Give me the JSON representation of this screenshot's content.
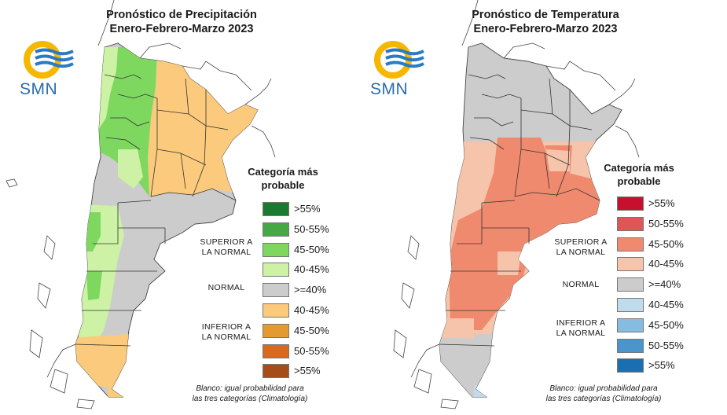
{
  "logo_text": "SMN",
  "precipitation": {
    "title_line1": "Pronóstico de Precipitación",
    "title_line2": "Enero-Febrero-Marzo 2023",
    "legend_title_line1": "Categoría más",
    "legend_title_line2": "probable",
    "legend_items": [
      {
        "label": ">55%",
        "color": "#1a7a30"
      },
      {
        "label": "50-55%",
        "color": "#45a845"
      },
      {
        "label": "45-50%",
        "color": "#7ed860"
      },
      {
        "label": "40-45%",
        "color": "#cdf2a5"
      },
      {
        "label": ">=40%",
        "color": "#cccccc"
      },
      {
        "label": "40-45%",
        "color": "#fbca7c"
      },
      {
        "label": "45-50%",
        "color": "#e39a30"
      },
      {
        "label": "50-55%",
        "color": "#d8691e"
      },
      {
        "label": ">55%",
        "color": "#a54e1a"
      }
    ],
    "category_superior_line1": "SUPERIOR A",
    "category_superior_line2": "LA NORMAL",
    "category_normal": "NORMAL",
    "category_inferior_line1": "INFERIOR A",
    "category_inferior_line2": "LA NORMAL",
    "note_line1": "Blanco: igual probabilidad para",
    "note_line2": "las tres categorías (Climatología)"
  },
  "temperature": {
    "title_line1": "Pronóstico de Temperatura",
    "title_line2": "Enero-Febrero-Marzo 2023",
    "legend_title_line1": "Categoría más",
    "legend_title_line2": "probable",
    "legend_items": [
      {
        "label": ">55%",
        "color": "#c8102e"
      },
      {
        "label": "50-55%",
        "color": "#e05555"
      },
      {
        "label": "45-50%",
        "color": "#f08a6e"
      },
      {
        "label": "40-45%",
        "color": "#f6c4aa"
      },
      {
        "label": ">=40%",
        "color": "#cccccc"
      },
      {
        "label": "40-45%",
        "color": "#c0dcec"
      },
      {
        "label": "45-50%",
        "color": "#86bcdf"
      },
      {
        "label": "50-55%",
        "color": "#4a96cc"
      },
      {
        "label": ">55%",
        "color": "#1a6fb3"
      }
    ],
    "category_superior_line1": "SUPERIOR A",
    "category_superior_line2": "LA NORMAL",
    "category_normal": "NORMAL",
    "category_inferior_line1": "INFERIOR A",
    "category_inferior_line2": "LA NORMAL",
    "note_line1": "Blanco: igual probabilidad para",
    "note_line2": "las tres categorías (Climatología)"
  }
}
